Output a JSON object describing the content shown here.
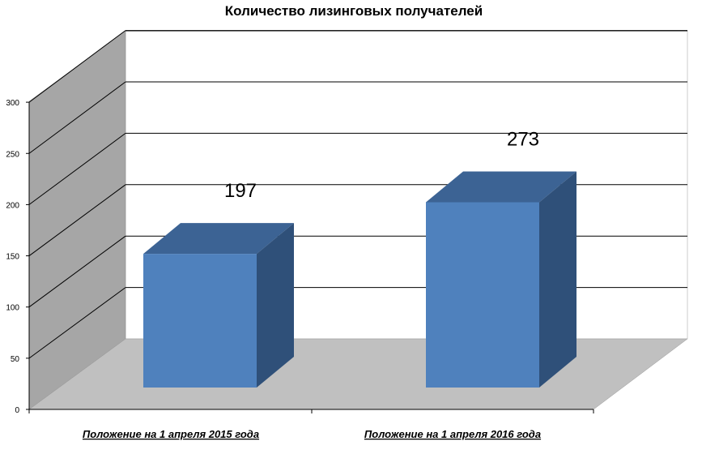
{
  "chart_data": {
    "type": "bar",
    "title": "Количество лизинговых получателей",
    "categories": [
      "Положение на 1 апреля 2015 года",
      "Положение на 1 апреля 2016 года"
    ],
    "values": [
      197,
      273
    ],
    "data_labels": [
      "197",
      "273"
    ],
    "ylim": [
      0,
      300
    ],
    "yticks": [
      "0",
      "50",
      "100",
      "150",
      "200",
      "250",
      "300"
    ],
    "xlabel": "",
    "ylabel": "",
    "grid": true,
    "legend": "none",
    "style": "3d",
    "colors": {
      "bar_front": "#4f81bd",
      "bar_side": "#2f5079",
      "bar_top": "#3c6394",
      "back_wall": "#ffffff",
      "side_wall": "#a6a6a6",
      "floor": "#c0c0c0"
    }
  }
}
